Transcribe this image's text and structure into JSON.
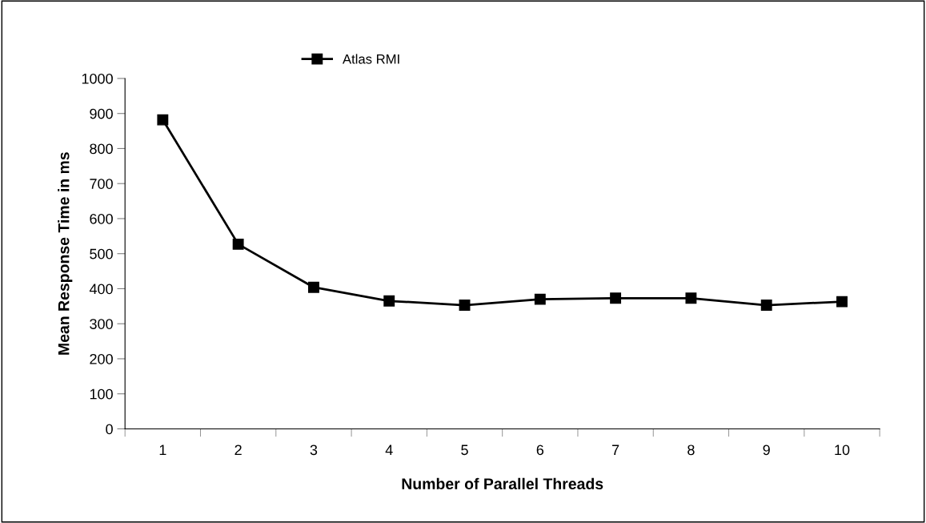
{
  "chart_data": {
    "type": "line",
    "xlabel": "Number of Parallel Threads",
    "ylabel": "Mean Response Time in ms",
    "categories": [
      "1",
      "2",
      "3",
      "4",
      "5",
      "6",
      "7",
      "8",
      "9",
      "10"
    ],
    "series": [
      {
        "name": "Atlas RMI",
        "color": "#000000",
        "values": [
          882,
          527,
          404,
          365,
          353,
          370,
          373,
          373,
          353,
          363
        ]
      }
    ],
    "ylim": [
      0,
      1000
    ],
    "yticks": [
      0,
      100,
      200,
      300,
      400,
      500,
      600,
      700,
      800,
      900,
      1000
    ],
    "marker": "square",
    "line_style": "solid",
    "legend": "top",
    "grid": false
  }
}
